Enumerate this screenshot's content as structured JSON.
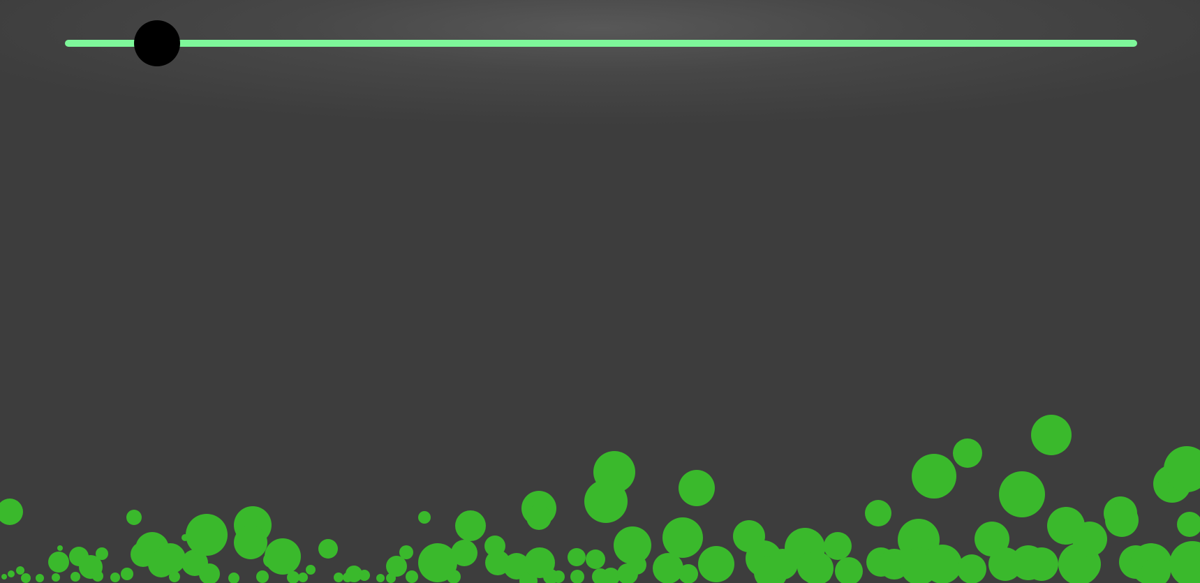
{
  "slider": {
    "value_fraction": 0.086,
    "track_color": "#7ef79a",
    "handle_color": "#000000"
  },
  "background_color": "#3d3d3d",
  "bubble_color": "#3ab92c"
}
